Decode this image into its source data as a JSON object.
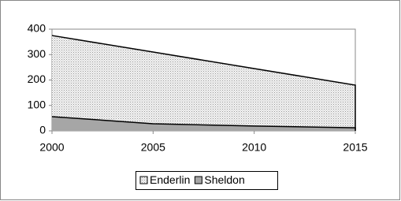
{
  "chart_data": {
    "type": "area",
    "x": [
      2000,
      2005,
      2010,
      2015
    ],
    "series": [
      {
        "name": "Enderlin",
        "color": "#e0e0e0",
        "values": [
          375,
          310,
          245,
          180
        ]
      },
      {
        "name": "Sheldon",
        "color": "#a6a6a6",
        "values": [
          56,
          28,
          19,
          12
        ]
      }
    ],
    "xlim": [
      2000,
      2015
    ],
    "xticks": [
      2000,
      2005,
      2010,
      2015
    ],
    "ylim": [
      0,
      400
    ],
    "yticks": [
      0,
      100,
      200,
      300,
      400
    ],
    "legend": "bottom"
  }
}
